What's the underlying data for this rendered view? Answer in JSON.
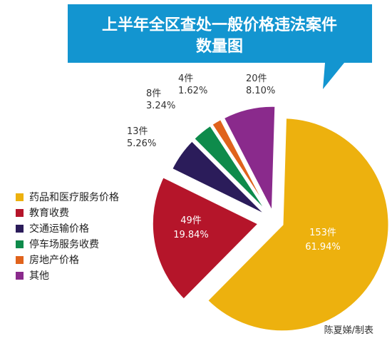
{
  "chart_data": {
    "type": "pie",
    "title_lines": [
      "上半年全区查处一般价格违法案件",
      "数量图"
    ],
    "slices": [
      {
        "label": "药品和医疗服务价格",
        "value": 153,
        "count_label": "153件",
        "percent_label": "61.94%",
        "color": "#EDB10E",
        "text_color": "#ffffff"
      },
      {
        "label": "教育收费",
        "value": 49,
        "count_label": "49件",
        "percent_label": "19.84%",
        "color": "#B5152A",
        "text_color": "#ffffff"
      },
      {
        "label": "交通运输价格",
        "value": 13,
        "count_label": "13件",
        "percent_label": "5.26%",
        "color": "#2B1C5A",
        "text_color": "#333333"
      },
      {
        "label": "停车场服务收费",
        "value": 8,
        "count_label": "8件",
        "percent_label": "3.24%",
        "color": "#0E8B4B",
        "text_color": "#333333"
      },
      {
        "label": "房地产价格",
        "value": 4,
        "count_label": "4件",
        "percent_label": "1.62%",
        "color": "#E0631C",
        "text_color": "#333333"
      },
      {
        "label": "其他",
        "value": 20,
        "count_label": "20件",
        "percent_label": "8.10%",
        "color": "#8A2A8C",
        "text_color": "#333333"
      }
    ],
    "legend_position": "left"
  },
  "title_colors": {
    "banner": "#1395D0",
    "text": "#ffffff"
  },
  "credit": "陈夏娣/制表"
}
